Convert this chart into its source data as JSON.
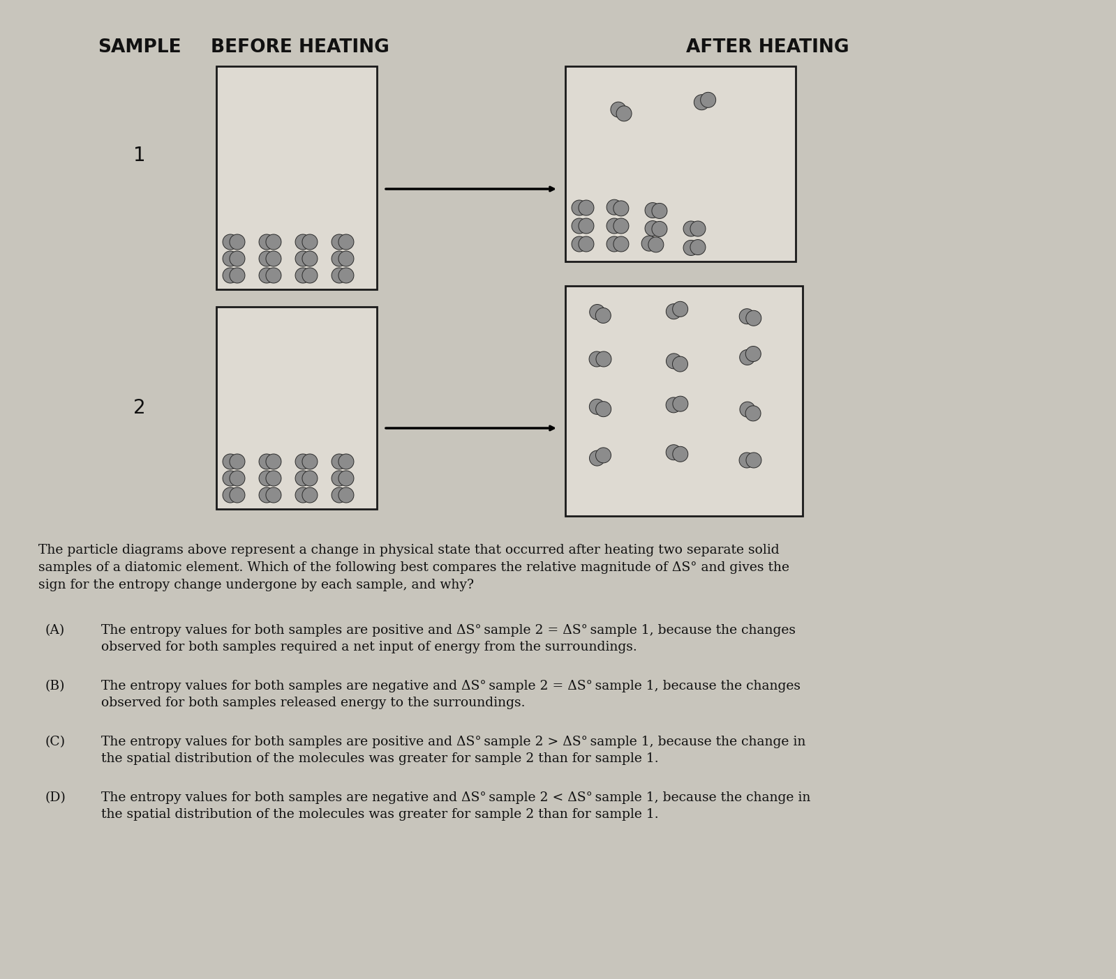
{
  "bg_color": "#c8c5bc",
  "box_bg": "#dedad2",
  "box_ec": "#1a1a1a",
  "particle_color": "#8c8c8c",
  "particle_ec": "#2a2a2a",
  "text_color": "#111111",
  "header_sample": "SAMPLE",
  "header_before": "BEFORE HEATING",
  "header_after": "AFTER HEATING",
  "label1": "1",
  "label2": "2",
  "question": "The particle diagrams above represent a change in physical state that occurred after heating two separate solid\nsamples of a diatomic element. Which of the following best compares the relative magnitude of ΔS° and gives the\nsign for the entropy change undergone by each sample, and why?",
  "choice_A_label": "(A)",
  "choice_A_line1": "The entropy values for both samples are positive and ΔS° sample 2 = ΔS° sample 1, because the changes",
  "choice_A_line2": "observed for both samples required a net input of energy from the surroundings.",
  "choice_B_label": "(B)",
  "choice_B_line1": "The entropy values for both samples are negative and ΔS° sample 2 = ΔS° sample 1, because the changes",
  "choice_B_line2": "observed for both samples released energy to the surroundings.",
  "choice_C_label": "(C)",
  "choice_C_line1": "The entropy values for both samples are positive and ΔS° sample 2 > ΔS° sample 1, because the change in",
  "choice_C_line2": "the spatial distribution of the molecules was greater for sample 2 than for sample 1.",
  "choice_D_label": "(D)",
  "choice_D_line1": "The entropy values for both samples are negative and ΔS° sample 2 < ΔS° sample 1, because the change in",
  "choice_D_line2": "the spatial distribution of the molecules was greater for sample 2 than for sample 1."
}
